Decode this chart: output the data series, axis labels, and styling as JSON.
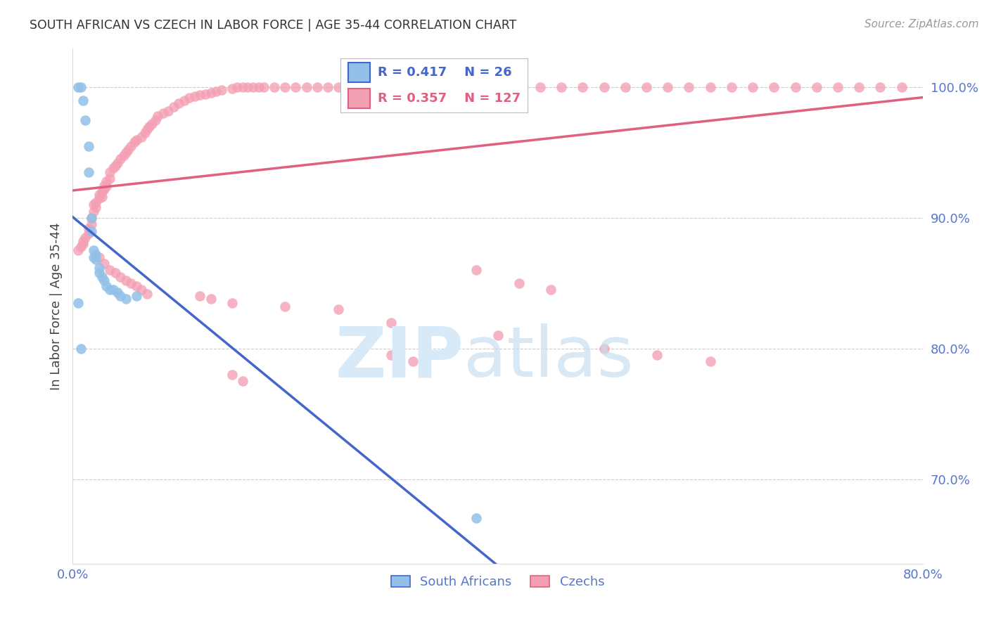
{
  "title": "SOUTH AFRICAN VS CZECH IN LABOR FORCE | AGE 35-44 CORRELATION CHART",
  "source": "Source: ZipAtlas.com",
  "ylabel": "In Labor Force | Age 35-44",
  "xlim": [
    0.0,
    0.8
  ],
  "ylim": [
    0.635,
    1.03
  ],
  "ytick_labels": [
    "70.0%",
    "80.0%",
    "90.0%",
    "100.0%"
  ],
  "ytick_values": [
    0.7,
    0.8,
    0.9,
    1.0
  ],
  "legend_blue_r": 0.417,
  "legend_blue_n": 26,
  "legend_pink_r": 0.357,
  "legend_pink_n": 127,
  "sa_color": "#92c0e8",
  "czech_color": "#f4a0b4",
  "sa_line_color": "#4466cc",
  "czech_line_color": "#e06080",
  "background_color": "#ffffff",
  "grid_color": "#cccccc",
  "title_color": "#333333",
  "tick_color": "#5577cc",
  "sa_x": [
    0.005,
    0.008,
    0.01,
    0.012,
    0.015,
    0.015,
    0.018,
    0.018,
    0.02,
    0.02,
    0.022,
    0.022,
    0.025,
    0.025,
    0.028,
    0.03,
    0.032,
    0.035,
    0.038,
    0.042,
    0.045,
    0.05,
    0.06,
    0.005,
    0.008,
    0.38
  ],
  "sa_y": [
    1.0,
    1.0,
    0.99,
    0.975,
    0.955,
    0.935,
    0.9,
    0.89,
    0.875,
    0.87,
    0.872,
    0.868,
    0.862,
    0.858,
    0.855,
    0.852,
    0.848,
    0.845,
    0.845,
    0.843,
    0.84,
    0.838,
    0.84,
    0.835,
    0.8,
    0.67
  ],
  "czech_x": [
    0.005,
    0.008,
    0.01,
    0.01,
    0.012,
    0.015,
    0.015,
    0.018,
    0.018,
    0.02,
    0.02,
    0.022,
    0.022,
    0.025,
    0.025,
    0.028,
    0.028,
    0.03,
    0.03,
    0.032,
    0.032,
    0.035,
    0.035,
    0.038,
    0.04,
    0.042,
    0.045,
    0.048,
    0.05,
    0.052,
    0.055,
    0.058,
    0.06,
    0.065,
    0.068,
    0.07,
    0.072,
    0.075,
    0.078,
    0.08,
    0.085,
    0.09,
    0.095,
    0.1,
    0.105,
    0.11,
    0.115,
    0.12,
    0.125,
    0.13,
    0.135,
    0.14,
    0.15,
    0.155,
    0.16,
    0.165,
    0.17,
    0.175,
    0.18,
    0.19,
    0.2,
    0.21,
    0.22,
    0.23,
    0.24,
    0.25,
    0.26,
    0.27,
    0.28,
    0.29,
    0.3,
    0.31,
    0.32,
    0.33,
    0.34,
    0.35,
    0.36,
    0.37,
    0.38,
    0.39,
    0.4,
    0.42,
    0.44,
    0.46,
    0.48,
    0.5,
    0.52,
    0.54,
    0.56,
    0.58,
    0.6,
    0.62,
    0.64,
    0.66,
    0.68,
    0.7,
    0.72,
    0.74,
    0.76,
    0.78,
    0.025,
    0.03,
    0.035,
    0.04,
    0.045,
    0.05,
    0.055,
    0.06,
    0.065,
    0.07,
    0.12,
    0.13,
    0.15,
    0.2,
    0.25,
    0.3,
    0.4,
    0.5,
    0.55,
    0.6,
    0.38,
    0.42,
    0.45,
    0.3,
    0.32,
    0.15,
    0.16
  ],
  "czech_y": [
    0.875,
    0.878,
    0.88,
    0.882,
    0.885,
    0.888,
    0.892,
    0.895,
    0.9,
    0.905,
    0.91,
    0.912,
    0.908,
    0.915,
    0.918,
    0.92,
    0.916,
    0.922,
    0.925,
    0.928,
    0.924,
    0.93,
    0.935,
    0.938,
    0.94,
    0.942,
    0.945,
    0.948,
    0.95,
    0.952,
    0.955,
    0.958,
    0.96,
    0.962,
    0.965,
    0.968,
    0.97,
    0.972,
    0.975,
    0.978,
    0.98,
    0.982,
    0.985,
    0.988,
    0.99,
    0.992,
    0.993,
    0.994,
    0.995,
    0.996,
    0.997,
    0.998,
    0.999,
    1.0,
    1.0,
    1.0,
    1.0,
    1.0,
    1.0,
    1.0,
    1.0,
    1.0,
    1.0,
    1.0,
    1.0,
    1.0,
    1.0,
    1.0,
    1.0,
    1.0,
    1.0,
    1.0,
    1.0,
    1.0,
    1.0,
    1.0,
    1.0,
    1.0,
    1.0,
    1.0,
    1.0,
    1.0,
    1.0,
    1.0,
    1.0,
    1.0,
    1.0,
    1.0,
    1.0,
    1.0,
    1.0,
    1.0,
    1.0,
    1.0,
    1.0,
    1.0,
    1.0,
    1.0,
    1.0,
    1.0,
    0.87,
    0.865,
    0.86,
    0.858,
    0.855,
    0.852,
    0.85,
    0.848,
    0.845,
    0.842,
    0.84,
    0.838,
    0.835,
    0.832,
    0.83,
    0.82,
    0.81,
    0.8,
    0.795,
    0.79,
    0.86,
    0.85,
    0.845,
    0.795,
    0.79,
    0.78,
    0.775
  ]
}
